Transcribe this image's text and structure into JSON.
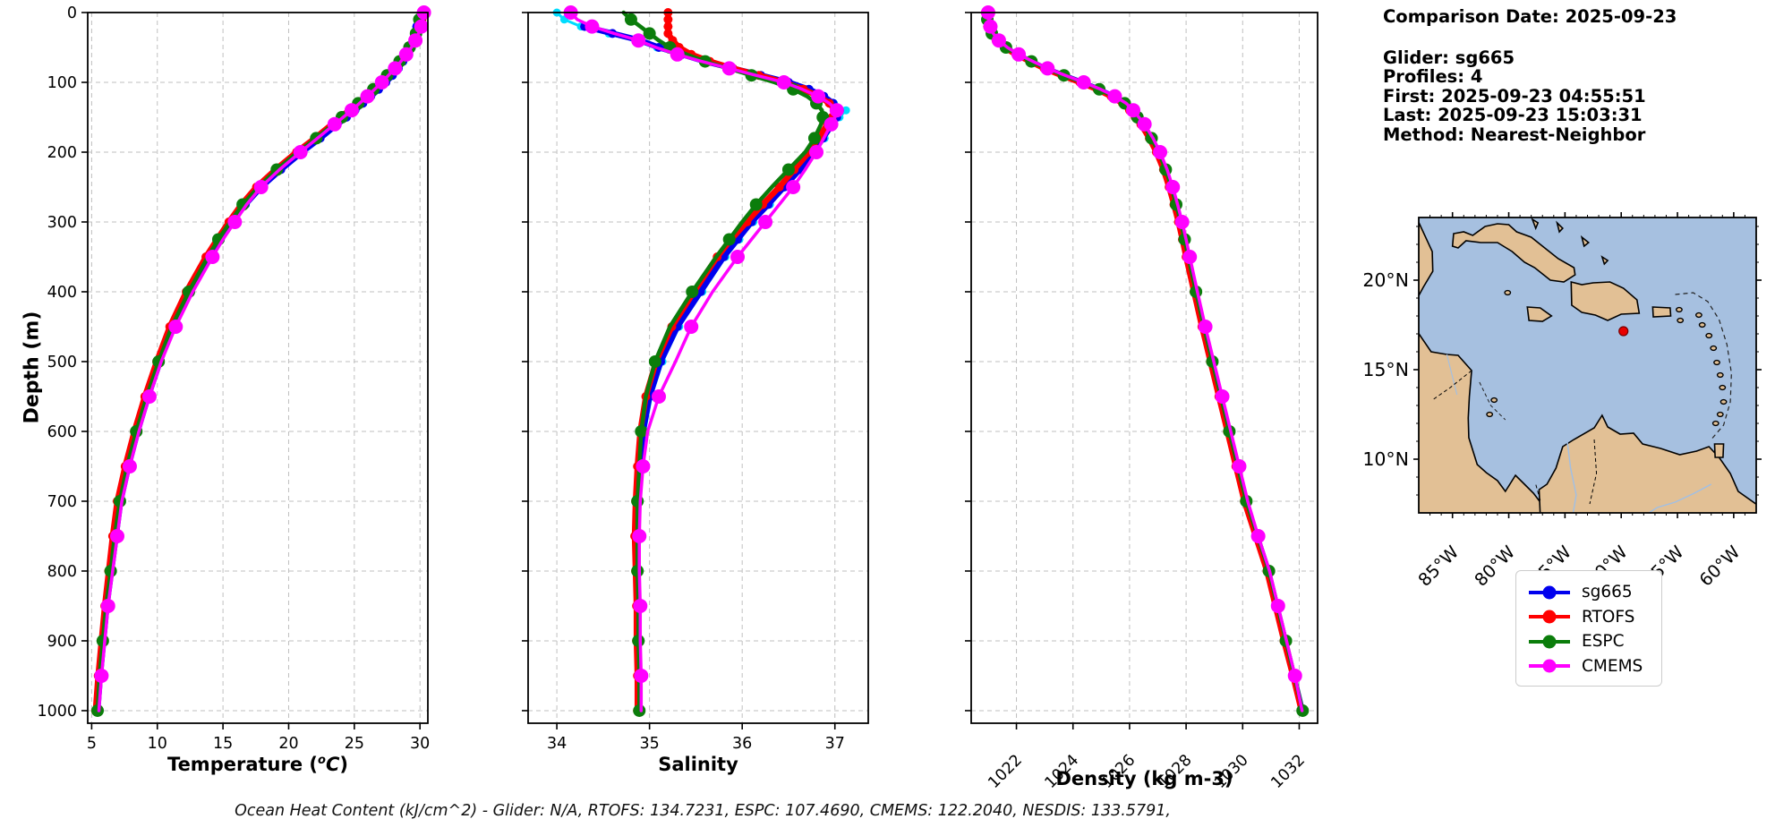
{
  "info": {
    "comparison_date": "Comparison Date: 2025-09-23",
    "glider": "Glider: sg665",
    "profiles": "Profiles: 4",
    "first": "First: 2025-09-23 04:55:51",
    "last": "Last: 2025-09-23 15:03:31",
    "method": "Method: Nearest-Neighbor"
  },
  "caption": "Ocean Heat Content (kJ/cm^2) - Glider: N/A,  RTOFS: 134.7231,  ESPC: 107.4690,  CMEMS: 122.2040,  NESDIS: 133.5791,",
  "legend": {
    "items": [
      {
        "label": "sg665",
        "color": "#0000ee"
      },
      {
        "label": "RTOFS",
        "color": "#ff0000"
      },
      {
        "label": "ESPC",
        "color": "#0b7d0b"
      },
      {
        "label": "CMEMS",
        "color": "#ff00ff"
      }
    ]
  },
  "axes": {
    "depth_label": "Depth (m)",
    "temp_label_pre": "Temperature (",
    "temp_label_sup": "o",
    "temp_label_it": "C",
    "temp_label_close": ")",
    "sal_label": "Salinity",
    "dens_label": "Density (kg m-3)"
  },
  "map": {
    "lat_labels": [
      "20°N",
      "15°N",
      "10°N"
    ],
    "lat_values": [
      20,
      15,
      10
    ],
    "lon_labels": [
      "85°W",
      "80°W",
      "75°W",
      "70°W",
      "65°W",
      "60°W"
    ],
    "lon_values": [
      -85,
      -80,
      -75,
      -70,
      -65,
      -60
    ],
    "marker": {
      "lon": -69.8,
      "lat": 17.15,
      "color": "#e80000"
    },
    "ocean_color": "#a6c0e0",
    "land_color": "#e2c095"
  },
  "chart_data": {
    "type": "line",
    "ylabel": "Depth (m)",
    "ylim": [
      0,
      1018
    ],
    "yticks": [
      0,
      100,
      200,
      300,
      400,
      500,
      600,
      700,
      800,
      900,
      1000
    ],
    "grid": true,
    "legend_position": "lower right outside",
    "depth": [
      0,
      10,
      20,
      30,
      40,
      50,
      60,
      70,
      80,
      90,
      100,
      110,
      120,
      130,
      140,
      150,
      160,
      180,
      200,
      225,
      250,
      275,
      300,
      325,
      350,
      400,
      450,
      500,
      550,
      600,
      650,
      700,
      750,
      800,
      850,
      900,
      950,
      1000
    ],
    "panels": [
      {
        "id": "temperature",
        "xlabel": "Temperature (°C)",
        "xlim": [
          4.7,
          30.6
        ],
        "xticks": [
          5,
          10,
          15,
          20,
          25,
          30
        ],
        "tick_rotation": 0,
        "series": [
          {
            "name": "sg665",
            "color": "#0000ee",
            "lw": 6.5,
            "mr": 5,
            "me": 1,
            "mo": 0,
            "values": [
              null,
              null,
              29.75,
              29.7,
              29.55,
              29.35,
              29.05,
              28.7,
              28.35,
              27.9,
              27.4,
              26.85,
              26.25,
              25.65,
              25.05,
              24.4,
              23.7,
              22.4,
              21.0,
              19.4,
              17.9,
              16.7,
              15.7,
              14.8,
              14.0,
              12.5,
              11.2,
              10.2,
              9.3,
              8.5,
              7.8,
              7.2,
              6.85,
              6.5,
              6.15,
              5.9,
              5.65,
              5.45
            ]
          },
          {
            "name": "RTOFS",
            "color": "#ff0000",
            "lw": 6.5,
            "mr": 5,
            "me": 1,
            "mo": 0,
            "values": [
              30.2,
              30.15,
              30.0,
              29.8,
              29.55,
              29.25,
              28.9,
              28.5,
              28.05,
              27.55,
              27.0,
              26.45,
              25.85,
              25.25,
              24.6,
              23.95,
              23.3,
              22.0,
              20.6,
              19.0,
              17.55,
              16.4,
              15.45,
              14.55,
              13.7,
              12.2,
              10.95,
              9.95,
              9.05,
              8.25,
              7.55,
              6.95,
              6.6,
              6.3,
              6.0,
              5.75,
              5.5,
              5.3
            ]
          },
          {
            "name": "ESPC",
            "color": "#0b7d0b",
            "lw": 4.5,
            "mr": 7,
            "me": 2,
            "mo": 1,
            "values": [
              30.0,
              29.95,
              29.85,
              29.7,
              29.5,
              29.2,
              28.85,
              28.45,
              28.0,
              27.5,
              27.0,
              26.45,
              25.85,
              25.3,
              24.7,
              24.05,
              23.4,
              22.1,
              20.7,
              19.1,
              17.7,
              16.5,
              15.55,
              14.65,
              13.85,
              12.4,
              11.1,
              10.1,
              9.2,
              8.4,
              7.7,
              7.15,
              6.75,
              6.45,
              6.1,
              5.85,
              5.6,
              5.45
            ]
          },
          {
            "name": "CMEMS",
            "color": "#ff00ff",
            "lw": 3.5,
            "mr": 8,
            "me": 2,
            "mo": 0,
            "values": [
              30.3,
              30.25,
              30.1,
              29.9,
              29.65,
              29.35,
              28.95,
              28.55,
              28.1,
              27.6,
              27.1,
              26.55,
              26.0,
              25.4,
              24.8,
              24.15,
              23.5,
              22.2,
              20.9,
              19.3,
              17.9,
              16.8,
              15.9,
              15.0,
              14.2,
              12.7,
              11.4,
              10.3,
              9.4,
              8.6,
              7.9,
              7.3,
              6.95,
              6.6,
              6.25,
              6.0,
              5.75,
              5.55
            ]
          }
        ]
      },
      {
        "id": "salinity",
        "xlabel": "Salinity",
        "xlim": [
          33.69,
          37.36
        ],
        "xticks": [
          34,
          35,
          36,
          37
        ],
        "tick_rotation": 0,
        "series": [
          {
            "name": "sg665-dive",
            "color": "#00dcff",
            "lw": 3,
            "mr": 4.5,
            "me": 1,
            "mo": 0,
            "values": [
              34.0,
              34.08,
              34.26,
              34.56,
              34.87,
              35.08,
              35.33,
              35.58,
              35.88,
              36.18,
              36.48,
              36.7,
              36.87,
              36.99,
              37.12,
              37.05,
              36.99,
              36.89,
              36.79,
              36.64,
              36.47,
              36.3,
              36.12,
              35.97,
              35.82,
              35.57,
              35.32,
              35.14,
              35.02,
              34.95,
              34.91,
              34.89,
              34.88,
              34.88,
              34.89,
              34.89,
              34.9,
              34.9
            ]
          },
          {
            "name": "sg665",
            "color": "#0000ee",
            "lw": 6.5,
            "mr": 5,
            "me": 1,
            "mo": 0,
            "values": [
              null,
              null,
              34.3,
              34.6,
              34.9,
              35.1,
              35.35,
              35.6,
              35.9,
              36.2,
              36.5,
              36.72,
              36.88,
              36.98,
              37.05,
              37.02,
              36.97,
              36.87,
              36.77,
              36.62,
              36.45,
              36.28,
              36.1,
              35.95,
              35.8,
              35.55,
              35.3,
              35.12,
              35.0,
              34.93,
              34.89,
              34.87,
              34.86,
              34.86,
              34.87,
              34.87,
              34.88,
              34.88
            ]
          },
          {
            "name": "RTOFS",
            "color": "#ff0000",
            "lw": 6.5,
            "mr": 5,
            "me": 1,
            "mo": 0,
            "values": [
              35.2,
              35.2,
              35.2,
              35.2,
              35.25,
              35.32,
              35.45,
              35.65,
              35.9,
              36.18,
              36.45,
              36.66,
              36.83,
              36.94,
              37.0,
              36.97,
              36.92,
              36.82,
              36.72,
              36.56,
              36.4,
              36.22,
              36.05,
              35.88,
              35.73,
              35.48,
              35.24,
              35.07,
              34.96,
              34.9,
              34.87,
              34.85,
              34.84,
              34.85,
              34.86,
              34.86,
              34.87,
              34.87
            ]
          },
          {
            "name": "ESPC",
            "color": "#0b7d0b",
            "lw": 4.5,
            "mr": 7,
            "me": 2,
            "mo": 1,
            "values": [
              34.72,
              34.8,
              34.9,
              35.0,
              35.1,
              35.22,
              35.4,
              35.6,
              35.85,
              36.1,
              36.35,
              36.55,
              36.7,
              36.8,
              36.86,
              36.87,
              36.85,
              36.78,
              36.68,
              36.5,
              36.32,
              36.15,
              36.0,
              35.86,
              35.72,
              35.46,
              35.22,
              35.06,
              34.96,
              34.91,
              34.89,
              34.87,
              34.87,
              34.87,
              34.88,
              34.88,
              34.89,
              34.89
            ]
          },
          {
            "name": "CMEMS",
            "color": "#ff00ff",
            "lw": 3.5,
            "mr": 8,
            "me": 2,
            "mo": 0,
            "values": [
              34.15,
              34.22,
              34.38,
              34.62,
              34.88,
              35.07,
              35.3,
              35.56,
              35.86,
              36.15,
              36.45,
              36.65,
              36.82,
              36.94,
              37.02,
              37.0,
              36.96,
              36.88,
              36.8,
              36.68,
              36.55,
              36.4,
              36.25,
              36.1,
              35.95,
              35.68,
              35.45,
              35.28,
              35.1,
              34.98,
              34.93,
              34.9,
              34.89,
              34.89,
              34.9,
              34.9,
              34.91,
              34.91
            ]
          }
        ]
      },
      {
        "id": "density",
        "xlabel": "Density (kg m-3)",
        "xlim": [
          1020.4,
          1032.65
        ],
        "xticks": [
          1022,
          1024,
          1026,
          1028,
          1030,
          1032
        ],
        "tick_rotation": 45,
        "series": [
          {
            "name": "sg665",
            "color": "#0000ee",
            "lw": 6.5,
            "mr": 5,
            "me": 1,
            "mo": 0,
            "values": [
              null,
              null,
              1021.0,
              1021.1,
              1021.3,
              1021.6,
              1022.0,
              1022.5,
              1023.0,
              1023.65,
              1024.3,
              1024.9,
              1025.4,
              1025.8,
              1026.05,
              1026.25,
              1026.45,
              1026.75,
              1027.0,
              1027.25,
              1027.45,
              1027.62,
              1027.78,
              1027.92,
              1028.05,
              1028.32,
              1028.6,
              1028.9,
              1029.2,
              1029.5,
              1029.8,
              1030.1,
              1030.5,
              1030.9,
              1031.2,
              1031.5,
              1031.8,
              1032.1
            ]
          },
          {
            "name": "RTOFS",
            "color": "#ff0000",
            "lw": 6.5,
            "mr": 5,
            "me": 1,
            "mo": 0,
            "values": [
              1020.9,
              1020.92,
              1020.98,
              1021.08,
              1021.28,
              1021.58,
              1021.98,
              1022.48,
              1022.98,
              1023.6,
              1024.25,
              1024.85,
              1025.35,
              1025.75,
              1026.0,
              1026.2,
              1026.4,
              1026.7,
              1026.95,
              1027.2,
              1027.4,
              1027.57,
              1027.73,
              1027.87,
              1028.0,
              1028.28,
              1028.56,
              1028.86,
              1029.16,
              1029.46,
              1029.76,
              1030.06,
              1030.46,
              1030.86,
              1031.16,
              1031.46,
              1031.78,
              1032.08
            ]
          },
          {
            "name": "ESPC",
            "color": "#0b7d0b",
            "lw": 4.5,
            "mr": 7,
            "me": 2,
            "mo": 1,
            "values": [
              1020.95,
              1020.97,
              1021.03,
              1021.13,
              1021.33,
              1021.63,
              1022.03,
              1022.53,
              1023.05,
              1023.68,
              1024.33,
              1024.93,
              1025.43,
              1025.83,
              1026.08,
              1026.28,
              1026.48,
              1026.78,
              1027.03,
              1027.28,
              1027.48,
              1027.65,
              1027.81,
              1027.95,
              1028.08,
              1028.35,
              1028.63,
              1028.93,
              1029.23,
              1029.53,
              1029.83,
              1030.13,
              1030.53,
              1030.93,
              1031.23,
              1031.53,
              1031.83,
              1032.12
            ]
          },
          {
            "name": "CMEMS",
            "color": "#ff00ff",
            "lw": 3.5,
            "mr": 8,
            "me": 2,
            "mo": 0,
            "values": [
              1021.0,
              1021.02,
              1021.08,
              1021.18,
              1021.38,
              1021.68,
              1022.08,
              1022.58,
              1023.1,
              1023.73,
              1024.38,
              1024.98,
              1025.48,
              1025.88,
              1026.13,
              1026.33,
              1026.53,
              1026.83,
              1027.08,
              1027.33,
              1027.53,
              1027.7,
              1027.86,
              1028.0,
              1028.13,
              1028.4,
              1028.68,
              1028.98,
              1029.28,
              1029.58,
              1029.88,
              1030.18,
              1030.55,
              1030.95,
              1031.25,
              1031.55,
              1031.85,
              1032.1
            ]
          }
        ]
      }
    ]
  }
}
